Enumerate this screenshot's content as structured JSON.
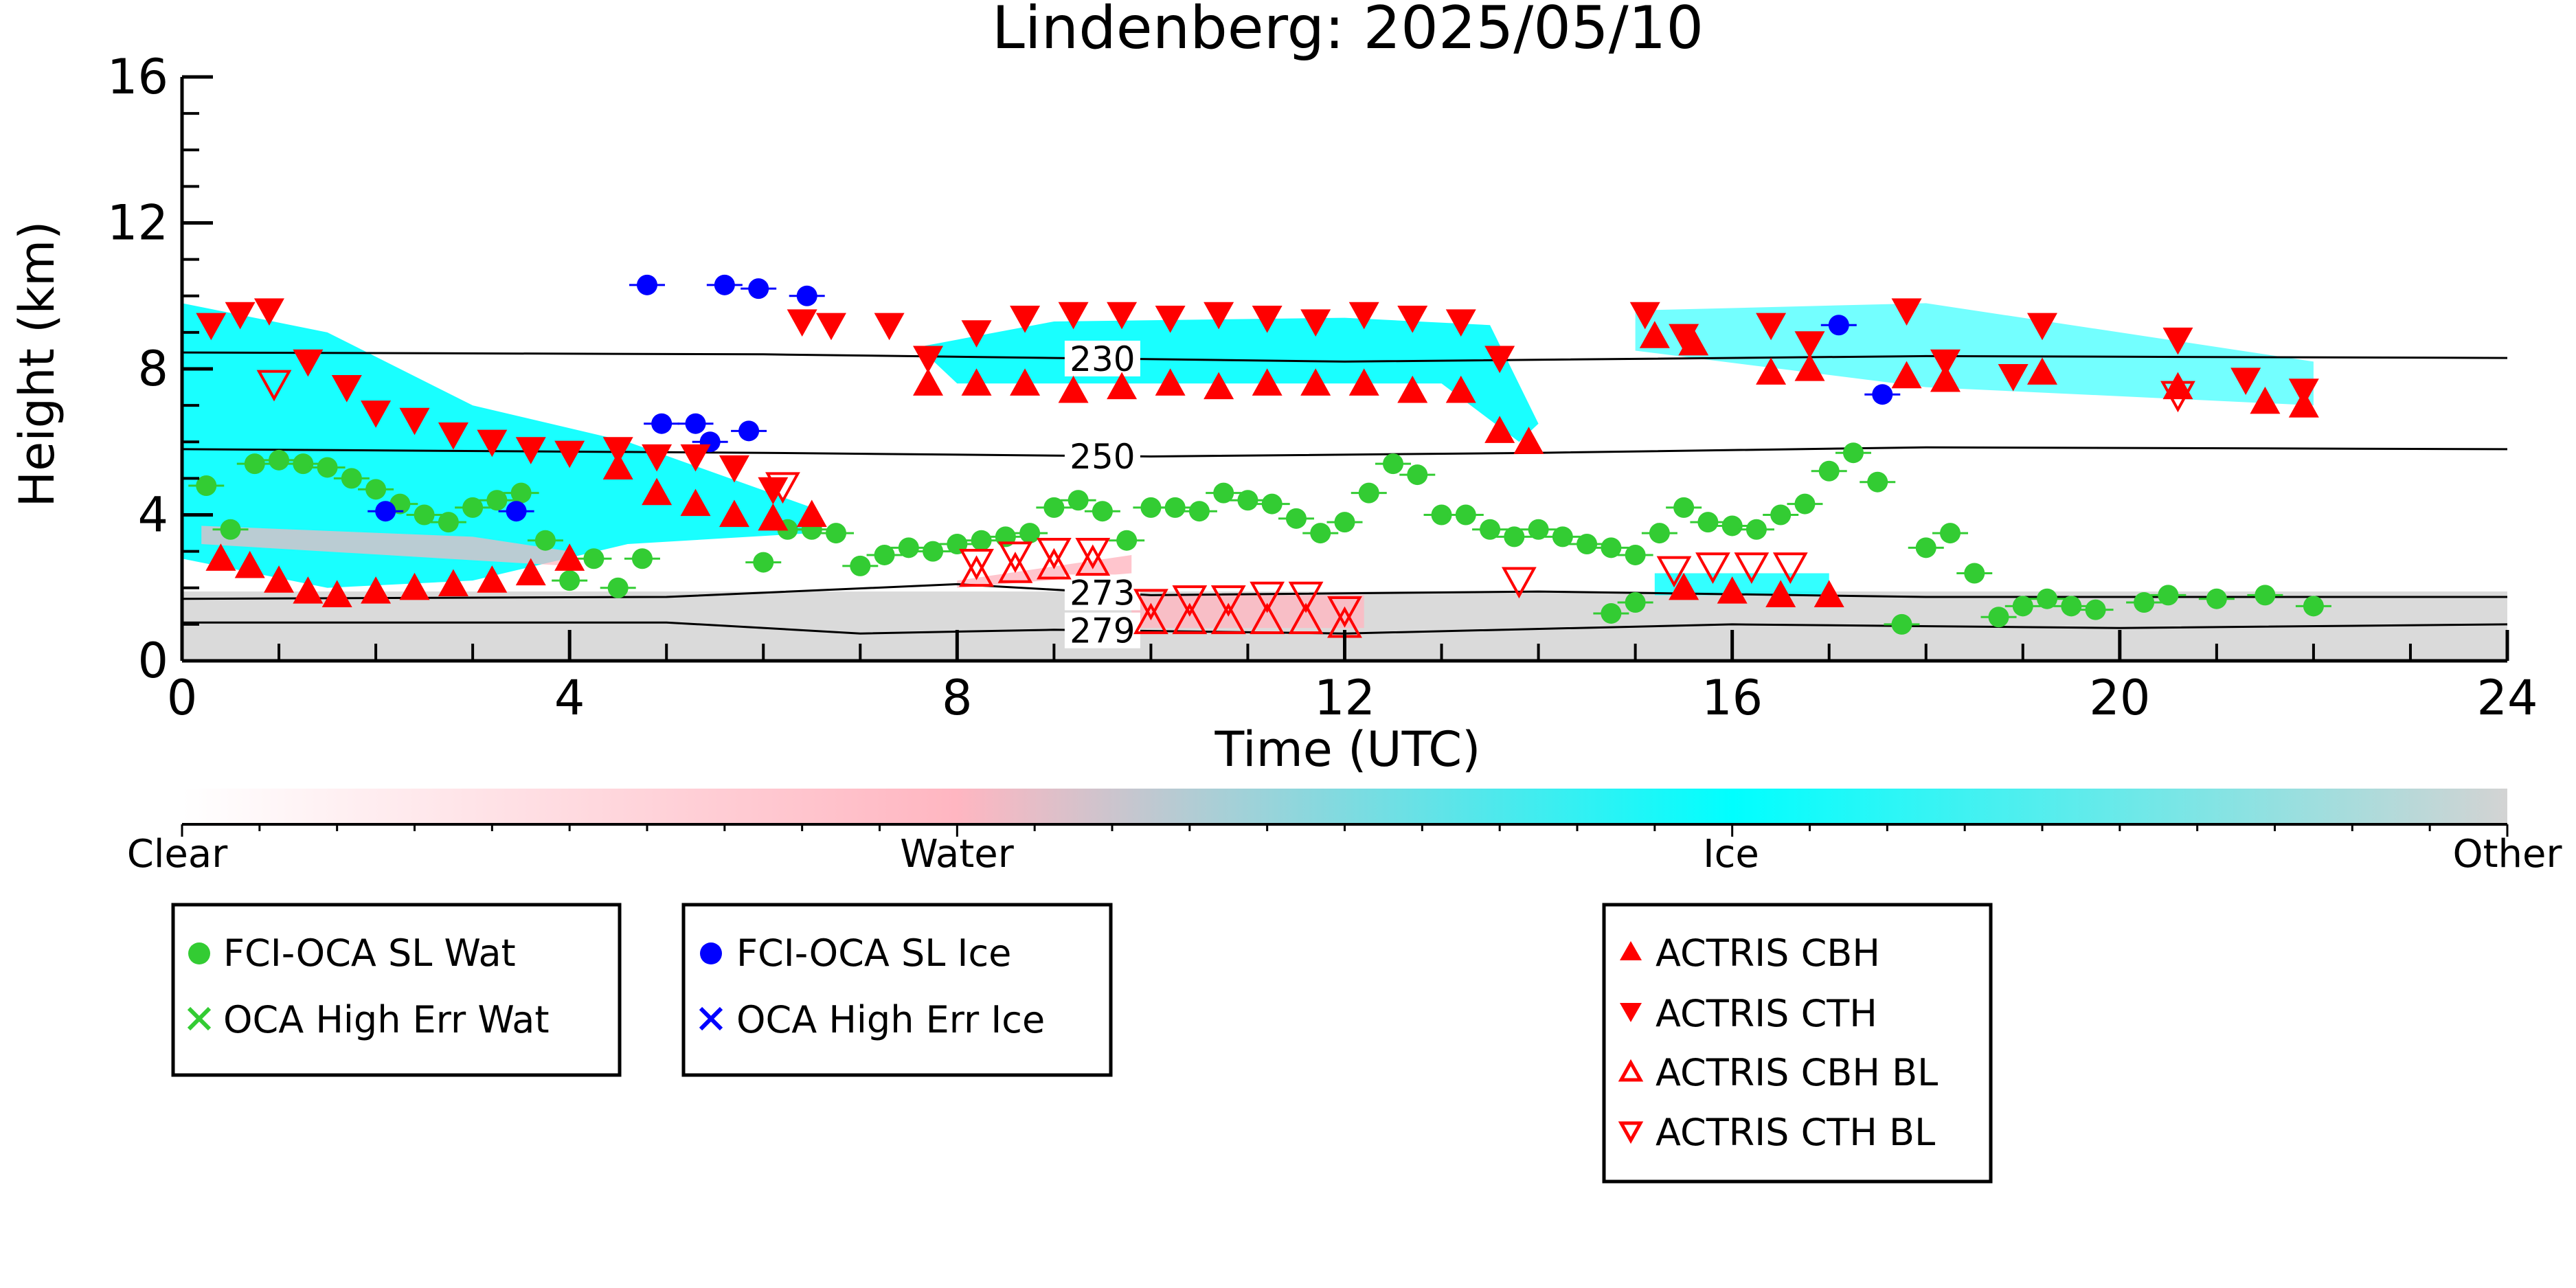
{
  "chart_data": {
    "type": "scatter",
    "title": "Lindenberg: 2025/05/10",
    "xlabel": "Time (UTC)",
    "ylabel": "Height (km)",
    "xlim": [
      0,
      24
    ],
    "ylim": [
      0,
      16
    ],
    "x_ticks": [
      "0",
      "4",
      "8",
      "12",
      "16",
      "20",
      "24"
    ],
    "y_ticks": [
      "0",
      "4",
      "8",
      "12",
      "16"
    ],
    "grid": false,
    "colorbar": {
      "labels": [
        "Clear",
        "Water",
        "Ice",
        "Other"
      ],
      "colors": [
        "#ffffff",
        "#ffb6c1",
        "#00ffff",
        "#d3d3d3"
      ]
    },
    "isotherms": [
      {
        "label": "230",
        "points": [
          [
            0,
            8.45
          ],
          [
            6,
            8.4
          ],
          [
            12,
            8.2
          ],
          [
            18,
            8.35
          ],
          [
            24,
            8.3
          ]
        ]
      },
      {
        "label": "250",
        "points": [
          [
            0,
            5.8
          ],
          [
            6,
            5.7
          ],
          [
            10,
            5.6
          ],
          [
            14,
            5.7
          ],
          [
            18,
            5.85
          ],
          [
            24,
            5.8
          ]
        ]
      },
      {
        "label": "273",
        "points": [
          [
            0,
            1.7
          ],
          [
            5,
            1.75
          ],
          [
            8,
            2.1
          ],
          [
            10,
            1.8
          ],
          [
            14,
            1.9
          ],
          [
            18,
            1.75
          ],
          [
            24,
            1.75
          ]
        ]
      },
      {
        "label": "279",
        "points": [
          [
            0,
            1.05
          ],
          [
            5,
            1.05
          ],
          [
            7,
            0.75
          ],
          [
            9,
            0.85
          ],
          [
            12,
            0.75
          ],
          [
            16,
            1.0
          ],
          [
            20,
            0.9
          ],
          [
            24,
            1.0
          ]
        ]
      }
    ],
    "series": [
      {
        "name": "FCI-OCA SL Wat",
        "marker": "circle",
        "color": "#33cc33",
        "points": [
          [
            0.25,
            4.8
          ],
          [
            0.5,
            3.6
          ],
          [
            0.75,
            5.4
          ],
          [
            1.0,
            5.5
          ],
          [
            1.25,
            5.4
          ],
          [
            1.5,
            5.3
          ],
          [
            1.75,
            5.0
          ],
          [
            2.0,
            4.7
          ],
          [
            2.25,
            4.3
          ],
          [
            2.5,
            4.0
          ],
          [
            2.75,
            3.8
          ],
          [
            3.0,
            4.2
          ],
          [
            3.25,
            4.4
          ],
          [
            3.5,
            4.6
          ],
          [
            3.75,
            3.3
          ],
          [
            4.0,
            2.2
          ],
          [
            4.25,
            2.8
          ],
          [
            4.5,
            2.0
          ],
          [
            4.75,
            2.8
          ],
          [
            6.0,
            2.7
          ],
          [
            6.25,
            3.6
          ],
          [
            6.5,
            3.6
          ],
          [
            6.75,
            3.5
          ],
          [
            7.0,
            2.6
          ],
          [
            7.25,
            2.9
          ],
          [
            7.5,
            3.1
          ],
          [
            7.75,
            3.0
          ],
          [
            8.0,
            3.2
          ],
          [
            8.25,
            3.3
          ],
          [
            8.5,
            3.4
          ],
          [
            8.75,
            3.5
          ],
          [
            9.0,
            4.2
          ],
          [
            9.25,
            4.4
          ],
          [
            9.5,
            4.1
          ],
          [
            9.75,
            3.3
          ],
          [
            10.0,
            4.2
          ],
          [
            10.25,
            4.2
          ],
          [
            10.5,
            4.1
          ],
          [
            10.75,
            4.6
          ],
          [
            11.0,
            4.4
          ],
          [
            11.25,
            4.3
          ],
          [
            11.5,
            3.9
          ],
          [
            11.75,
            3.5
          ],
          [
            12.0,
            3.8
          ],
          [
            12.25,
            4.6
          ],
          [
            12.5,
            5.4
          ],
          [
            12.75,
            5.1
          ],
          [
            13.0,
            4.0
          ],
          [
            13.25,
            4.0
          ],
          [
            13.5,
            3.6
          ],
          [
            13.75,
            3.4
          ],
          [
            14.0,
            3.6
          ],
          [
            14.25,
            3.4
          ],
          [
            14.5,
            3.2
          ],
          [
            14.75,
            3.1
          ],
          [
            15.0,
            2.9
          ],
          [
            15.25,
            3.5
          ],
          [
            15.5,
            4.2
          ],
          [
            15.75,
            3.8
          ],
          [
            16.0,
            3.7
          ],
          [
            16.25,
            3.6
          ],
          [
            16.5,
            4.0
          ],
          [
            16.75,
            4.3
          ],
          [
            17.0,
            5.2
          ],
          [
            17.25,
            5.7
          ],
          [
            17.5,
            4.9
          ],
          [
            14.75,
            1.3
          ],
          [
            15.0,
            1.6
          ],
          [
            17.75,
            1.0
          ],
          [
            18.0,
            3.1
          ],
          [
            18.25,
            3.5
          ],
          [
            18.5,
            2.4
          ],
          [
            18.75,
            1.2
          ],
          [
            19.0,
            1.5
          ],
          [
            19.25,
            1.7
          ],
          [
            19.5,
            1.5
          ],
          [
            19.75,
            1.4
          ],
          [
            20.25,
            1.6
          ],
          [
            20.5,
            1.8
          ],
          [
            21.0,
            1.7
          ],
          [
            21.5,
            1.8
          ],
          [
            22.0,
            1.5
          ]
        ]
      },
      {
        "name": "FCI-OCA SL Ice",
        "marker": "circle",
        "color": "#0000ff",
        "points": [
          [
            2.1,
            4.1
          ],
          [
            3.45,
            4.1
          ],
          [
            4.8,
            10.3
          ],
          [
            4.95,
            6.5
          ],
          [
            5.3,
            6.5
          ],
          [
            5.45,
            6.0
          ],
          [
            5.6,
            10.3
          ],
          [
            5.85,
            6.3
          ],
          [
            5.95,
            10.2
          ],
          [
            6.45,
            10.0
          ],
          [
            17.1,
            9.2
          ],
          [
            17.55,
            7.3
          ]
        ]
      },
      {
        "name": "ACTRIS CBH",
        "marker": "triangle-up",
        "color": "#ff0000",
        "points": [
          [
            0.4,
            2.8
          ],
          [
            0.7,
            2.6
          ],
          [
            1.0,
            2.2
          ],
          [
            1.3,
            1.9
          ],
          [
            1.6,
            1.8
          ],
          [
            2.0,
            1.9
          ],
          [
            2.4,
            2.0
          ],
          [
            2.8,
            2.1
          ],
          [
            3.2,
            2.2
          ],
          [
            3.6,
            2.4
          ],
          [
            4.0,
            2.8
          ],
          [
            4.5,
            5.3
          ],
          [
            4.9,
            4.6
          ],
          [
            5.3,
            4.3
          ],
          [
            5.7,
            4.0
          ],
          [
            6.1,
            3.9
          ],
          [
            6.5,
            4.0
          ],
          [
            7.7,
            7.6
          ],
          [
            8.2,
            7.6
          ],
          [
            8.7,
            7.6
          ],
          [
            9.2,
            7.4
          ],
          [
            9.7,
            7.5
          ],
          [
            10.2,
            7.6
          ],
          [
            10.7,
            7.5
          ],
          [
            11.2,
            7.6
          ],
          [
            11.7,
            7.6
          ],
          [
            12.2,
            7.6
          ],
          [
            12.7,
            7.4
          ],
          [
            13.2,
            7.4
          ],
          [
            13.6,
            6.3
          ],
          [
            13.9,
            6.0
          ],
          [
            15.2,
            8.9
          ],
          [
            15.6,
            8.7
          ],
          [
            16.4,
            7.9
          ],
          [
            16.8,
            8.0
          ],
          [
            17.8,
            7.8
          ],
          [
            18.2,
            7.7
          ],
          [
            19.2,
            7.9
          ],
          [
            20.6,
            7.5
          ],
          [
            21.5,
            7.1
          ],
          [
            21.9,
            7.0
          ],
          [
            15.5,
            2.0
          ],
          [
            16.0,
            1.9
          ],
          [
            16.5,
            1.8
          ],
          [
            17.0,
            1.8
          ]
        ]
      },
      {
        "name": "ACTRIS CTH",
        "marker": "triangle-down",
        "color": "#ff0000",
        "points": [
          [
            0.3,
            9.2
          ],
          [
            0.6,
            9.5
          ],
          [
            0.9,
            9.6
          ],
          [
            1.3,
            8.2
          ],
          [
            1.7,
            7.5
          ],
          [
            2.0,
            6.8
          ],
          [
            2.4,
            6.6
          ],
          [
            2.8,
            6.2
          ],
          [
            3.2,
            6.0
          ],
          [
            3.6,
            5.8
          ],
          [
            4.0,
            5.7
          ],
          [
            4.5,
            5.8
          ],
          [
            4.9,
            5.6
          ],
          [
            5.3,
            5.6
          ],
          [
            5.7,
            5.3
          ],
          [
            6.1,
            4.7
          ],
          [
            6.4,
            9.3
          ],
          [
            6.7,
            9.2
          ],
          [
            7.3,
            9.2
          ],
          [
            7.7,
            8.3
          ],
          [
            8.2,
            9.0
          ],
          [
            8.7,
            9.4
          ],
          [
            9.2,
            9.5
          ],
          [
            9.7,
            9.5
          ],
          [
            10.2,
            9.4
          ],
          [
            10.7,
            9.5
          ],
          [
            11.2,
            9.4
          ],
          [
            11.7,
            9.3
          ],
          [
            12.2,
            9.5
          ],
          [
            12.7,
            9.4
          ],
          [
            13.2,
            9.3
          ],
          [
            13.6,
            8.3
          ],
          [
            15.1,
            9.5
          ],
          [
            15.5,
            8.9
          ],
          [
            16.4,
            9.2
          ],
          [
            16.8,
            8.7
          ],
          [
            17.8,
            9.6
          ],
          [
            19.2,
            9.2
          ],
          [
            20.6,
            8.8
          ],
          [
            21.3,
            7.7
          ],
          [
            21.9,
            7.4
          ],
          [
            18.2,
            8.2
          ],
          [
            18.9,
            7.8
          ]
        ]
      },
      {
        "name": "ACTRIS CBH BL",
        "marker": "triangle-up-open",
        "color": "#ff0000",
        "points": [
          [
            8.2,
            2.4
          ],
          [
            8.6,
            2.5
          ],
          [
            9.0,
            2.6
          ],
          [
            9.4,
            2.7
          ],
          [
            10.0,
            1.1
          ],
          [
            10.4,
            1.1
          ],
          [
            10.8,
            1.1
          ],
          [
            11.2,
            1.1
          ],
          [
            11.6,
            1.1
          ],
          [
            12.0,
            1.0
          ]
        ]
      },
      {
        "name": "ACTRIS CTH BL",
        "marker": "triangle-down-open",
        "color": "#ff0000",
        "points": [
          [
            8.2,
            2.7
          ],
          [
            8.6,
            2.9
          ],
          [
            9.0,
            3.0
          ],
          [
            9.4,
            3.0
          ],
          [
            10.0,
            1.6
          ],
          [
            10.4,
            1.7
          ],
          [
            10.8,
            1.7
          ],
          [
            11.2,
            1.8
          ],
          [
            11.6,
            1.8
          ],
          [
            12.0,
            1.4
          ],
          [
            13.8,
            2.2
          ],
          [
            15.4,
            2.5
          ],
          [
            15.8,
            2.6
          ],
          [
            16.2,
            2.6
          ],
          [
            16.6,
            2.6
          ],
          [
            20.6,
            7.3
          ],
          [
            0.95,
            7.6
          ],
          [
            6.2,
            4.8
          ]
        ]
      }
    ],
    "legend": [
      {
        "entries": [
          "FCI-OCA SL Wat",
          "OCA High Err Wat"
        ],
        "location": "bottom-left"
      },
      {
        "entries": [
          "FCI-OCA SL Ice",
          "OCA High Err Ice"
        ],
        "location": "bottom-center-left"
      },
      {
        "entries": [
          "ACTRIS CBH",
          "ACTRIS CTH",
          "ACTRIS CBH BL",
          "ACTRIS CTH BL"
        ],
        "location": "bottom-center-right"
      }
    ]
  }
}
